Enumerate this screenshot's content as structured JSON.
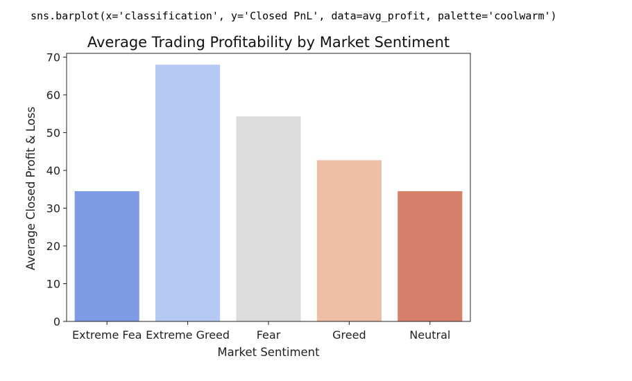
{
  "code_output": "sns.barplot(x='classification', y='Closed PnL', data=avg_profit, palette='coolwarm')",
  "chart_data": {
    "type": "bar",
    "title": "Average Trading Profitability by Market Sentiment",
    "xlabel": "Market Sentiment",
    "ylabel": "Average Closed Profit & Loss",
    "categories": [
      "Extreme Fear",
      "Extreme Greed",
      "Fear",
      "Greed",
      "Neutral"
    ],
    "tick_labels_displayed": [
      "Extreme Fea",
      "Extreme Greed",
      "Fear",
      "Greed",
      "Neutral"
    ],
    "values": [
      34.5,
      68.0,
      54.3,
      42.7,
      34.5
    ],
    "colors": [
      "#7f9be6",
      "#b5c9f4",
      "#dcdcdc",
      "#eebea7",
      "#d6806c"
    ],
    "ylim": [
      0,
      71
    ],
    "yticks": [
      0,
      10,
      20,
      30,
      40,
      50,
      60,
      70
    ],
    "grid": false,
    "legend": "none"
  }
}
